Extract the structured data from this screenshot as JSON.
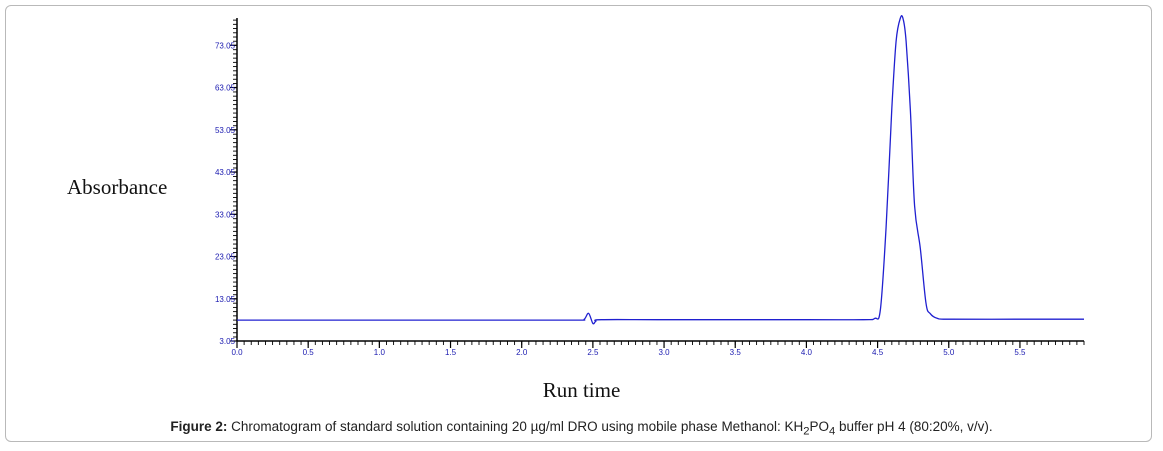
{
  "chart_data": {
    "type": "line",
    "ylabel": "Absorbance",
    "xlabel": "Run time",
    "xlim": [
      0.0,
      5.95
    ],
    "ylim": [
      3.05,
      79.5
    ],
    "x_ticks": [
      "0.0",
      "0.5",
      "1.0",
      "1.5",
      "2.0",
      "2.5",
      "3.0",
      "3.5",
      "4.0",
      "4.5",
      "5.0",
      "5.5"
    ],
    "y_ticks": [
      "3.05",
      "13.05",
      "23.05",
      "33.05",
      "43.05",
      "53.05",
      "63.05",
      "73.05"
    ],
    "series_color": "#2020d0",
    "series": [
      {
        "x": [
          0.0,
          1.0,
          2.0,
          2.4,
          2.44,
          2.47,
          2.5,
          2.52,
          2.56,
          3.0,
          4.0,
          4.4,
          4.48,
          4.52,
          4.56,
          4.6,
          4.63,
          4.66,
          4.68,
          4.7,
          4.73,
          4.76,
          4.8,
          4.84,
          4.87,
          4.92,
          5.0,
          5.5,
          5.95
        ],
        "y": [
          8.0,
          8.0,
          8.0,
          8.0,
          8.2,
          9.6,
          7.2,
          7.7,
          8.1,
          8.1,
          8.1,
          8.1,
          8.4,
          10.5,
          30.0,
          58.0,
          74.0,
          79.5,
          79.2,
          74.0,
          58.0,
          35.0,
          25.0,
          12.0,
          9.5,
          8.4,
          8.2,
          8.2,
          8.2
        ]
      }
    ]
  },
  "caption": {
    "label": "Figure 2:",
    "text_before": "Chromatogram of standard solution containing 20 µg/ml DRO using mobile phase Methanol: KH",
    "sub1": "2",
    "text_mid": "PO",
    "sub2": "4",
    "text_after": " buffer pH 4 (80:20%, v/v)."
  }
}
